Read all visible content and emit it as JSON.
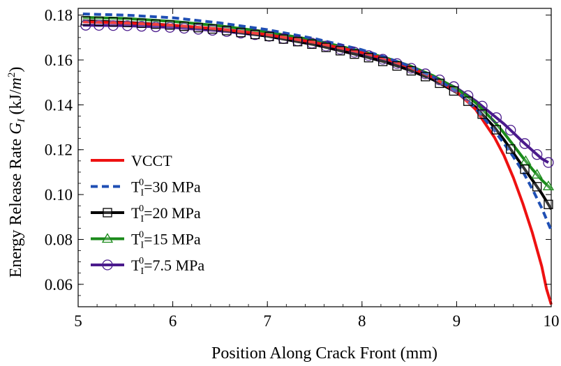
{
  "chart_data": {
    "type": "line",
    "title": "",
    "xlabel": "Position Along Crack Front (mm)",
    "ylabel": {
      "prefix": "Energy Release Rate ",
      "symbol": "G",
      "symbol_sub": "I",
      "units_open": " (kJ/",
      "units_var": "m",
      "units_sup": "2",
      "units_close": ")"
    },
    "xlim": [
      5.0,
      10.0
    ],
    "ylim": [
      0.05,
      0.183
    ],
    "xticks": [
      5,
      6,
      7,
      8,
      9,
      10
    ],
    "yticks": [
      0.06,
      0.08,
      0.1,
      0.12,
      0.14,
      0.16,
      0.18
    ],
    "xtick_labels": [
      "5",
      "6",
      "7",
      "8",
      "9",
      "10"
    ],
    "ytick_labels": [
      "0.06",
      "0.08",
      "0.10",
      "0.12",
      "0.14",
      "0.16",
      "0.18"
    ],
    "grid": false,
    "legend_position": "bottom-left",
    "series": [
      {
        "name": "VCCT",
        "legend": {
          "main": "VCCT",
          "t": "",
          "sup": "",
          "sub": "",
          "rest": ""
        },
        "color": "#ee1111",
        "dash": "",
        "width": 4,
        "marker": "none",
        "x": [
          5.05,
          5.5,
          6.0,
          6.5,
          7.0,
          7.5,
          8.0,
          8.25,
          8.5,
          8.75,
          9.0,
          9.2,
          9.4,
          9.5,
          9.6,
          9.7,
          9.8,
          9.9,
          9.95,
          10.0
        ],
        "y": [
          0.177,
          0.1765,
          0.1755,
          0.1738,
          0.1713,
          0.1678,
          0.1633,
          0.1605,
          0.1568,
          0.1522,
          0.1458,
          0.138,
          0.1255,
          0.1175,
          0.1075,
          0.096,
          0.083,
          0.068,
          0.058,
          0.051
        ]
      },
      {
        "name": "T_I^0=30 MPa",
        "legend": {
          "main": "",
          "t": "T",
          "sup": "0",
          "sub": "I",
          "rest": "=30 MPa"
        },
        "color": "#1f4fb4",
        "dash": "10,6",
        "width": 4,
        "marker": "none",
        "x": [
          5.05,
          5.5,
          6.0,
          6.5,
          7.0,
          7.5,
          8.0,
          8.25,
          8.5,
          8.75,
          9.0,
          9.2,
          9.4,
          9.5,
          9.6,
          9.7,
          9.8,
          9.9,
          10.0
        ],
        "y": [
          0.1805,
          0.18,
          0.1788,
          0.1765,
          0.1735,
          0.1695,
          0.1645,
          0.1612,
          0.1573,
          0.1525,
          0.146,
          0.1385,
          0.1285,
          0.1228,
          0.1168,
          0.1103,
          0.1025,
          0.094,
          0.084
        ]
      },
      {
        "name": "T_I^0=20 MPa",
        "legend": {
          "main": "",
          "t": "T",
          "sup": "0",
          "sub": "I",
          "rest": "=20 MPa"
        },
        "color": "#000000",
        "dash": "",
        "width": 4,
        "marker": "square",
        "x": [
          5.05,
          5.5,
          6.0,
          6.5,
          7.0,
          7.5,
          8.0,
          8.25,
          8.5,
          8.75,
          9.0,
          9.2,
          9.4,
          9.5,
          9.6,
          9.7,
          9.8,
          9.9,
          10.0
        ],
        "y": [
          0.1775,
          0.1768,
          0.1755,
          0.1735,
          0.1706,
          0.1668,
          0.1618,
          0.159,
          0.1555,
          0.1512,
          0.1455,
          0.139,
          0.13,
          0.1245,
          0.1185,
          0.1125,
          0.1065,
          0.1005,
          0.0935
        ],
        "marker_x": [
          5.08,
          5.22,
          5.37,
          5.52,
          5.67,
          5.82,
          5.97,
          6.12,
          6.27,
          6.42,
          6.57,
          6.72,
          6.87,
          7.02,
          7.17,
          7.32,
          7.47,
          7.62,
          7.77,
          7.92,
          8.07,
          8.22,
          8.37,
          8.52,
          8.67,
          8.82,
          8.97,
          9.12,
          9.27,
          9.42,
          9.57,
          9.72,
          9.85,
          9.97
        ]
      },
      {
        "name": "T_I^0=15 MPa",
        "legend": {
          "main": "",
          "t": "T",
          "sup": "0",
          "sub": "I",
          "rest": "=15 MPa"
        },
        "color": "#1a8a1a",
        "dash": "",
        "width": 4,
        "marker": "triangle",
        "x": [
          5.05,
          5.5,
          6.0,
          6.5,
          7.0,
          7.5,
          8.0,
          8.25,
          8.5,
          8.75,
          9.0,
          9.2,
          9.4,
          9.5,
          9.6,
          9.7,
          9.8,
          9.9,
          10.0
        ],
        "y": [
          0.179,
          0.1785,
          0.1772,
          0.1752,
          0.1725,
          0.1688,
          0.1638,
          0.161,
          0.1575,
          0.153,
          0.1472,
          0.141,
          0.1325,
          0.1275,
          0.122,
          0.1165,
          0.1113,
          0.1065,
          0.1025
        ],
        "marker_x": [
          9.73,
          9.85,
          9.97
        ]
      },
      {
        "name": "T_I^0=7.5 MPa",
        "legend": {
          "main": "",
          "t": "T",
          "sup": "0",
          "sub": "I",
          "rest": "=7.5 MPa"
        },
        "color": "#4a1a8c",
        "dash": "",
        "width": 4,
        "marker": "circle",
        "x": [
          5.05,
          5.5,
          6.0,
          6.5,
          7.0,
          7.5,
          8.0,
          8.25,
          8.5,
          8.75,
          9.0,
          9.2,
          9.4,
          9.5,
          9.6,
          9.7,
          9.8,
          9.9,
          9.97
        ],
        "y": [
          0.1755,
          0.1753,
          0.1745,
          0.173,
          0.1707,
          0.1673,
          0.1627,
          0.16,
          0.1566,
          0.1525,
          0.1475,
          0.1418,
          0.135,
          0.1315,
          0.1275,
          0.1235,
          0.1197,
          0.116,
          0.1143
        ],
        "marker_x": [
          5.08,
          5.22,
          5.37,
          5.52,
          5.67,
          5.82,
          5.97,
          6.12,
          6.27,
          6.42,
          6.57,
          6.72,
          6.87,
          7.02,
          7.17,
          7.32,
          7.47,
          7.62,
          7.77,
          7.92,
          8.07,
          8.22,
          8.37,
          8.52,
          8.67,
          8.82,
          8.97,
          9.12,
          9.27,
          9.42,
          9.57,
          9.72,
          9.85,
          9.97
        ]
      }
    ]
  }
}
